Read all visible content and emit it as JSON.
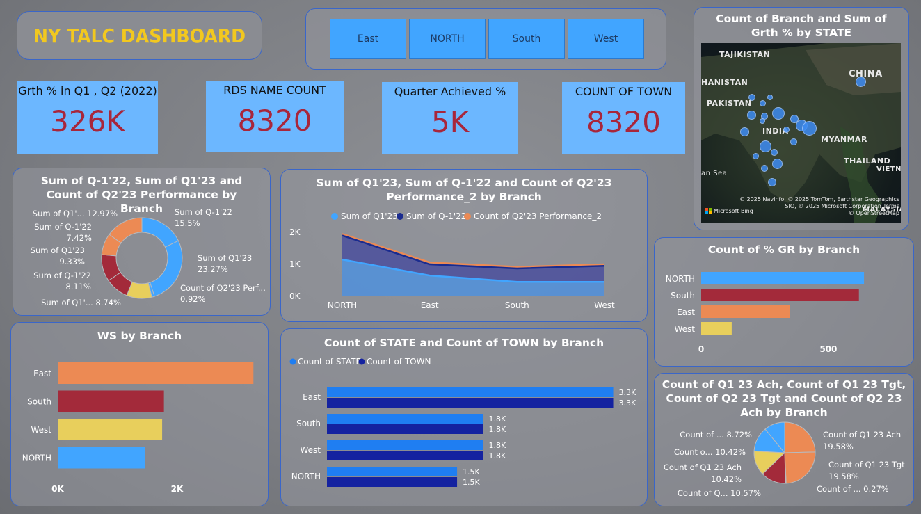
{
  "dashboard_title": "NY TALC DASHBOARD",
  "slicer": [
    "East",
    "NORTH",
    "South",
    "West"
  ],
  "kpis": [
    {
      "label": "Grth % in Q1 , Q2 (2022)",
      "value": "326K"
    },
    {
      "label": "RDS NAME COUNT",
      "value": "8320"
    },
    {
      "label": "Quarter Achieved %",
      "value": "5K"
    },
    {
      "label": "COUNT OF TOWN",
      "value": "8320"
    }
  ],
  "map": {
    "title": "Count of Branch and Sum of Grth % by STATE",
    "labels": [
      "TAJIKISTAN",
      "CHINA",
      "HANISTAN",
      "PAKISTAN",
      "INDIA",
      "MYANMAR",
      "THAILAND",
      "VIETNA",
      "an Sea",
      "MALAYSIA"
    ],
    "attribution": "© 2025 NavInfo, © 2025 TomTom, Earthstar Geographics SIO, © 2025 Microsoft Corporation",
    "terms": "Terms",
    "osm": "© OpenStreetMap",
    "bing": "Microsoft Bing"
  },
  "donut": {
    "title": "Sum of Q-1'22, Sum of Q1'23 and Count of Q2'23 Performance by Branch",
    "labels": [
      {
        "name": "Sum of Q-1'22",
        "pct": "15.5%"
      },
      {
        "name": "Sum of Q1'23",
        "pct": "23.27%"
      },
      {
        "name": "Count of Q2'23 Perf...",
        "pct": "0.92%"
      },
      {
        "name": "Sum of Q1'...",
        "pct": "8.74%"
      },
      {
        "name": "Sum of Q-1'22",
        "pct": "8.11%"
      },
      {
        "name": "Sum of Q1'23",
        "pct": "9.33%"
      },
      {
        "name": "Sum of Q-1'22",
        "pct": "7.42%"
      },
      {
        "name": "Sum of Q1'...",
        "pct": "12.97%"
      }
    ]
  },
  "area": {
    "title": "Sum of Q1'23, Sum of Q-1'22 and Count of Q2'23 Performance_2 by Branch",
    "legend": [
      "Sum of Q1'23",
      "Sum of Q-1'22",
      "Count of Q2'23 Performance_2"
    ],
    "yticks": [
      "0K",
      "1K",
      "2K"
    ],
    "xticks": [
      "NORTH",
      "East",
      "South",
      "West"
    ]
  },
  "gr": {
    "title": "Count of % GR by Branch",
    "categories": [
      "NORTH",
      "South",
      "East",
      "West"
    ],
    "xticks": [
      "0",
      "500"
    ]
  },
  "ws": {
    "title": "WS by Branch",
    "categories": [
      "East",
      "South",
      "West",
      "NORTH"
    ],
    "xticks": [
      "0K",
      "2K"
    ]
  },
  "state_town": {
    "title": "Count of STATE and Count of TOWN by Branch",
    "legend": [
      "Count of STATE",
      "Count of TOWN"
    ],
    "categories": [
      "East",
      "South",
      "West",
      "NORTH"
    ],
    "labels": [
      [
        "3.3K",
        "3.3K"
      ],
      [
        "1.8K",
        "1.8K"
      ],
      [
        "1.8K",
        "1.8K"
      ],
      [
        "1.5K",
        "1.5K"
      ]
    ]
  },
  "pie": {
    "title": "Count of Q1 23 Ach, Count of Q1 23 Tgt, Count of Q2 23 Tgt and Count of Q2 23 Ach by Branch",
    "labels": [
      {
        "name": "Count of Q1 23 Ach",
        "pct": "19.58%"
      },
      {
        "name": "Count of Q1 23 Tgt",
        "pct": "19.58%"
      },
      {
        "name": "Count of ...",
        "pct": "0.27%"
      },
      {
        "name": "Count of Q...",
        "pct": "10.57%"
      },
      {
        "name": "Count of Q1 23 Ach",
        "pct": "10.42%"
      },
      {
        "name": "Count o...",
        "pct": "10.42%"
      },
      {
        "name": "Count of ...",
        "pct": "8.72%"
      }
    ]
  },
  "colors": {
    "blue": "#41a5ff",
    "navy": "#1a2b8f",
    "orange": "#ec8a54",
    "red": "#a32a3a",
    "yellow": "#e8cf5c",
    "value_red": "#a8263b",
    "title_gold": "#f2c81f"
  },
  "chart_data": [
    {
      "type": "pie",
      "title": "Sum of Q-1'22, Sum of Q1'23 and Count of Q2'23 Performance by Branch",
      "categories": [
        "Sum of Q-1'22",
        "Sum of Q1'23",
        "Count of Q2'23 Perf...",
        "Sum of Q1'...",
        "Sum of Q-1'22",
        "Sum of Q1'23",
        "Sum of Q-1'22",
        "Sum of Q1'..."
      ],
      "values": [
        15.5,
        23.27,
        0.92,
        8.74,
        8.11,
        9.33,
        7.42,
        12.97
      ],
      "colors": [
        "#41a5ff",
        "#41a5ff",
        "#41a5ff",
        "#e8cf5c",
        "#a32a3a",
        "#a32a3a",
        "#ec8a54",
        "#ec8a54"
      ]
    },
    {
      "type": "area",
      "title": "Sum of Q1'23, Sum of Q-1'22 and Count of Q2'23 Performance_2 by Branch",
      "categories": [
        "NORTH",
        "East",
        "South",
        "West"
      ],
      "series": [
        {
          "name": "Sum of Q1'23",
          "values": [
            1150,
            650,
            450,
            450
          ]
        },
        {
          "name": "Sum of Q-1'22",
          "values": [
            1900,
            1000,
            870,
            950
          ]
        },
        {
          "name": "Count of Q2'23 Performance_2",
          "values": [
            1950,
            1060,
            920,
            1000
          ]
        }
      ],
      "ylim": [
        0,
        2000
      ]
    },
    {
      "type": "bar",
      "title": "Count of % GR by Branch",
      "categories": [
        "NORTH",
        "South",
        "East",
        "West"
      ],
      "values": [
        640,
        620,
        350,
        120
      ],
      "xlim": [
        0,
        700
      ]
    },
    {
      "type": "bar",
      "title": "WS by Branch",
      "categories": [
        "East",
        "South",
        "West",
        "NORTH"
      ],
      "values": [
        3280,
        1780,
        1750,
        1460
      ],
      "xlim": [
        0,
        3300
      ]
    },
    {
      "type": "bar",
      "title": "Count of STATE and Count of TOWN by Branch",
      "categories": [
        "East",
        "South",
        "West",
        "NORTH"
      ],
      "series": [
        {
          "name": "Count of STATE",
          "values": [
            3300,
            1800,
            1800,
            1500
          ]
        },
        {
          "name": "Count of TOWN",
          "values": [
            3300,
            1800,
            1800,
            1500
          ]
        }
      ],
      "xlim": [
        0,
        3400
      ]
    },
    {
      "type": "pie",
      "title": "Count of Q1 23 Ach, Count of Q1 23 Tgt, Count of Q2 23 Tgt and Count of Q2 23 Ach by Branch",
      "categories": [
        "Count of Q1 23 Ach",
        "Count of Q1 23 Tgt",
        "Count of ...",
        "Count of Q...",
        "Count of Q1 23 Ach",
        "Count o...",
        "Count of ..."
      ],
      "values": [
        19.58,
        19.58,
        0.27,
        10.57,
        10.42,
        10.42,
        8.72
      ],
      "colors": [
        "#ec8a54",
        "#ec8a54",
        "#a32a3a",
        "#a32a3a",
        "#e8cf5c",
        "#41a5ff",
        "#41a5ff"
      ]
    }
  ]
}
